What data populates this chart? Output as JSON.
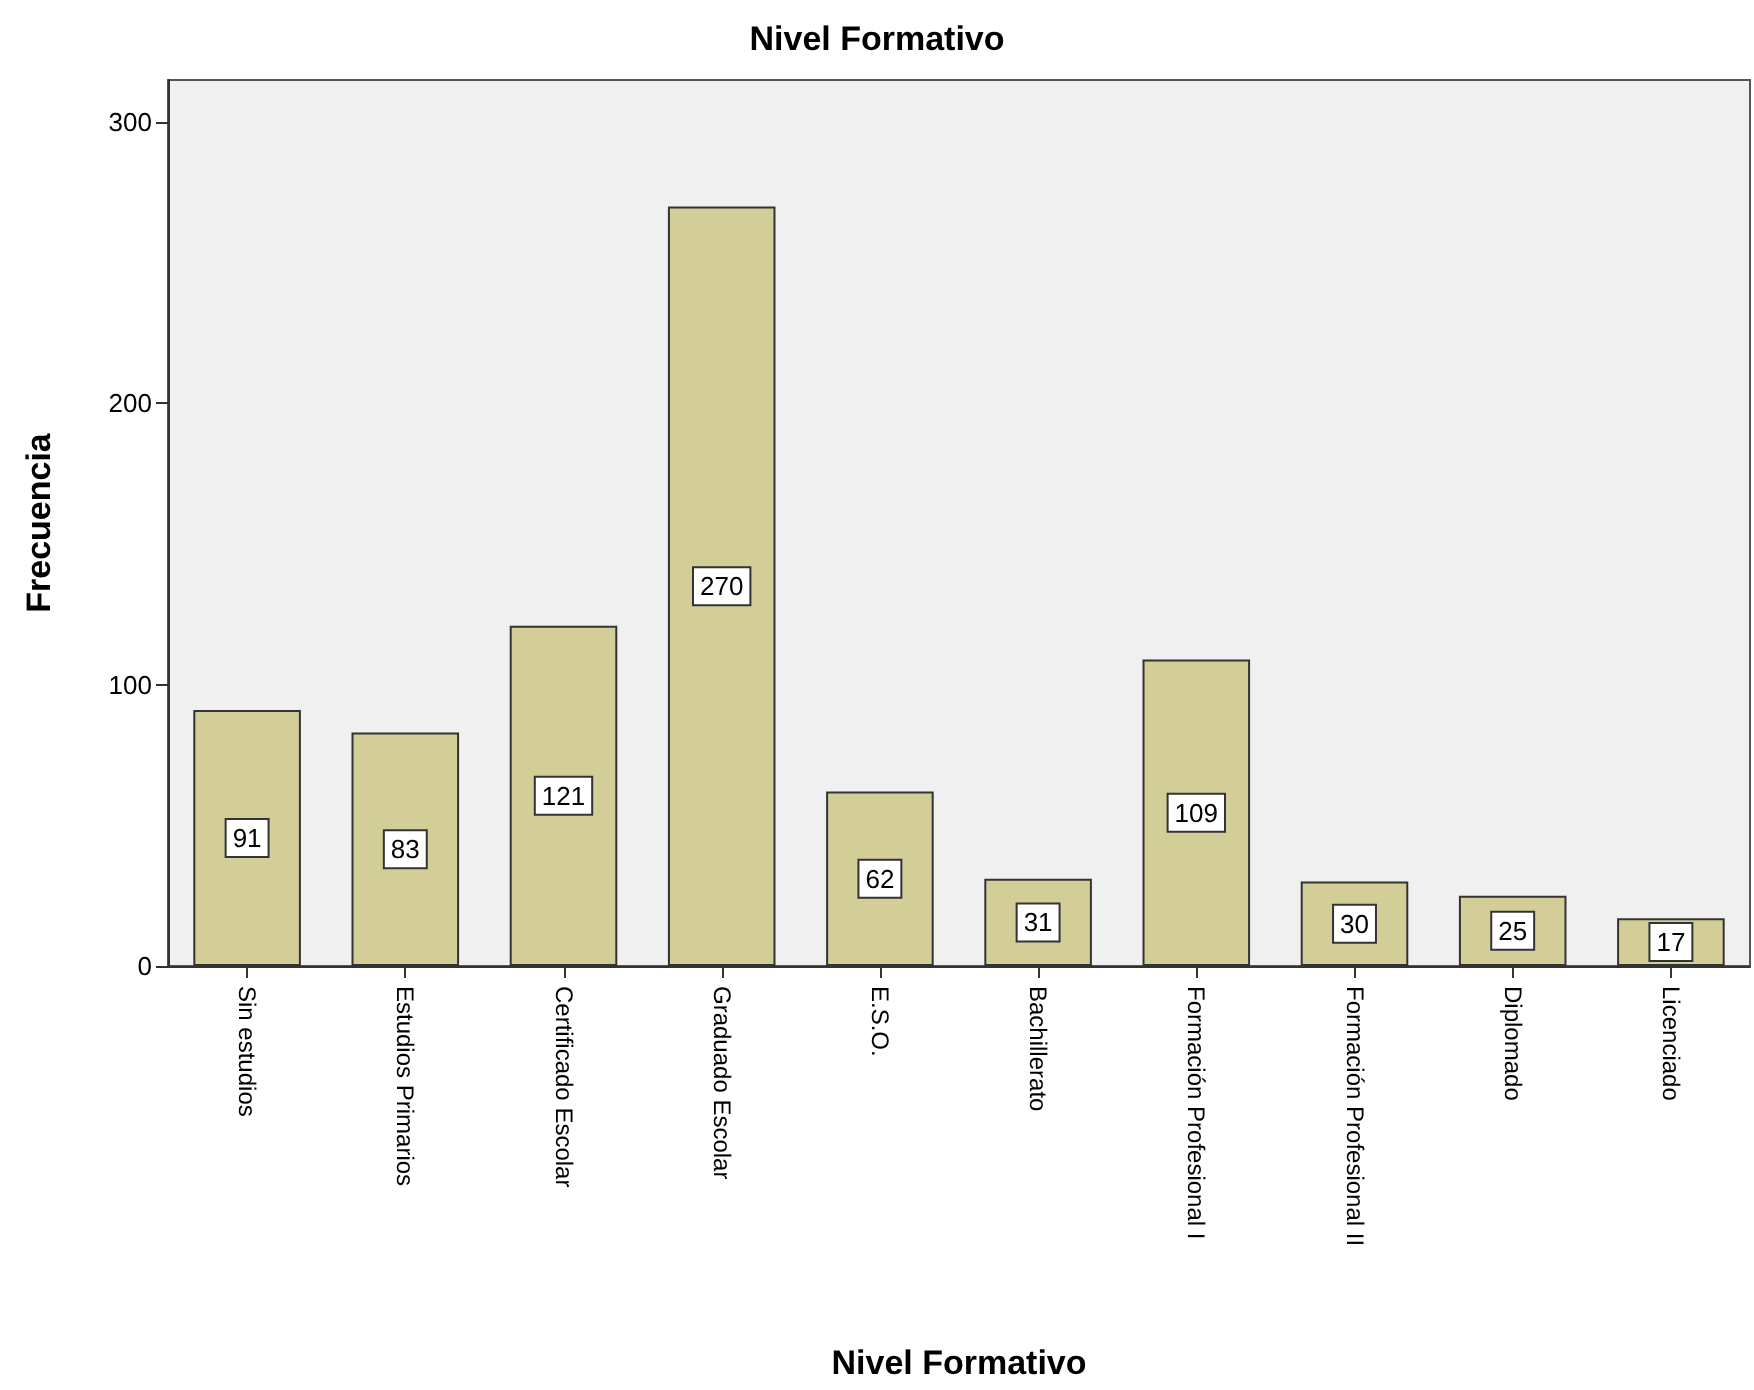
{
  "chart_data": {
    "type": "bar",
    "title": "Nivel Formativo",
    "xlabel": "Nivel Formativo",
    "ylabel": "Frecuencia",
    "categories": [
      "Sin estudios",
      "Estudios Primarios",
      "Certificado Escolar",
      "Graduado Escolar",
      "E.S.O.",
      "Bachillerato",
      "Formación Profesional I",
      "Formación Profesional II",
      "Diplomado",
      "Licenciado"
    ],
    "values": [
      91,
      83,
      121,
      270,
      62,
      31,
      109,
      30,
      25,
      17
    ],
    "color": "#d3ce97",
    "ylim": [
      0,
      315
    ],
    "yticks": [
      0,
      100,
      200,
      300
    ],
    "grid": false,
    "data_labels": true
  }
}
